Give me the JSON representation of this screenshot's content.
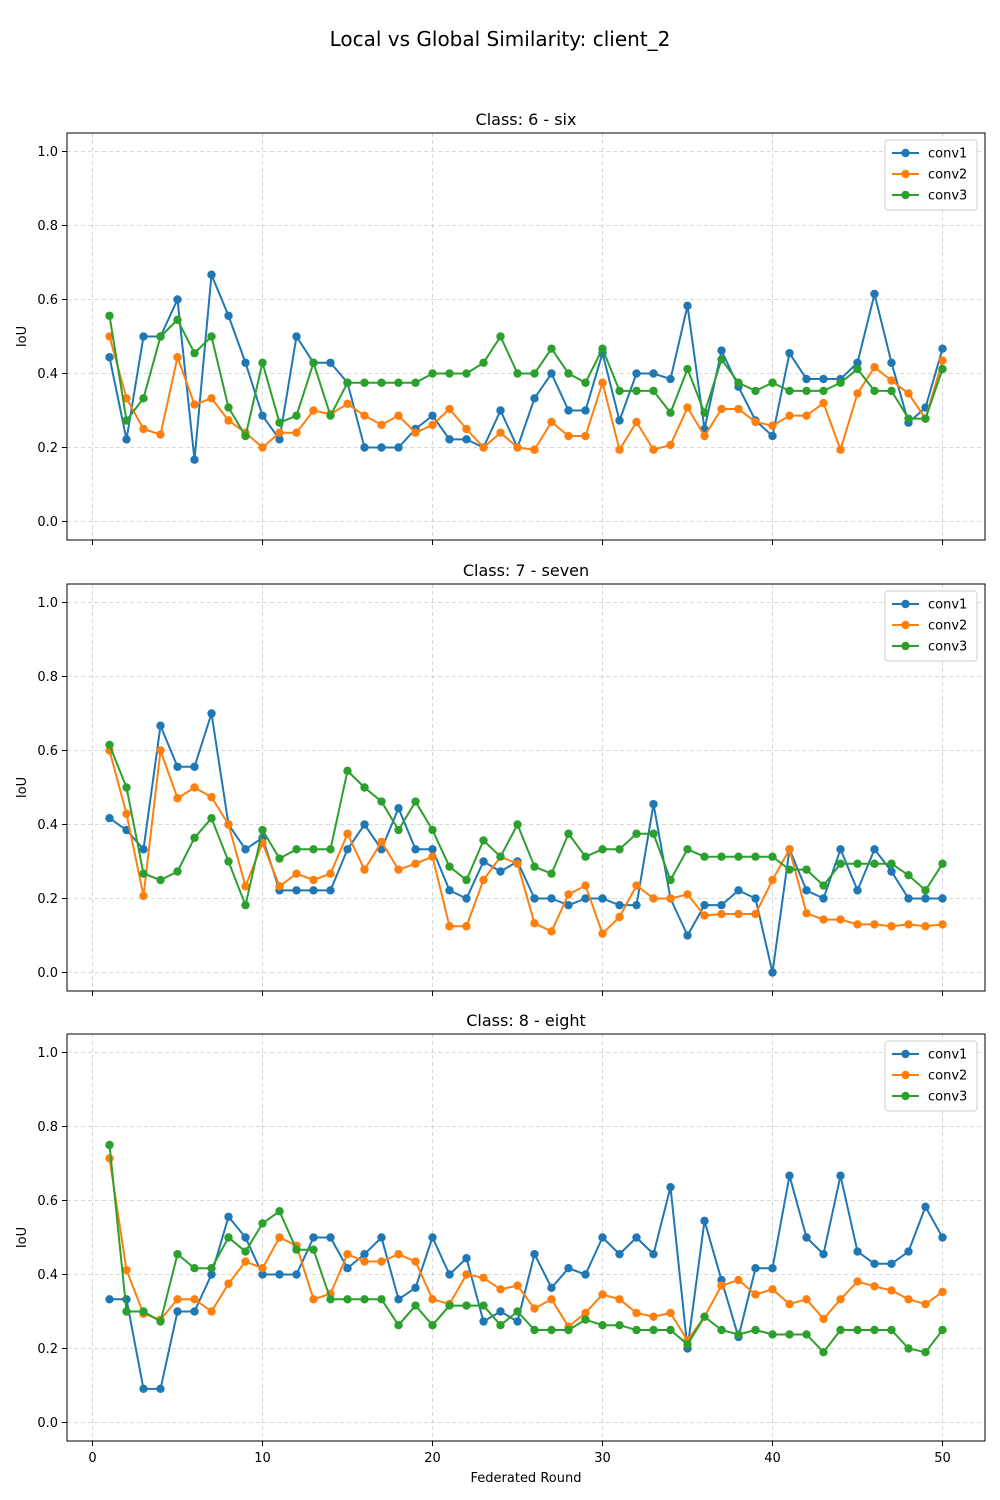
{
  "figure_title": "Local vs Global Similarity: client_2",
  "colors": {
    "conv1": "#1f77b4",
    "conv2": "#ff7f0e",
    "conv3": "#2ca02c",
    "grid": "#cccccc"
  },
  "chart_data": [
    {
      "type": "line",
      "title": "Class: 6 - six",
      "xlabel": "Federated Round",
      "ylabel": "IoU",
      "xlim": [
        -1.5,
        52.5
      ],
      "ylim": [
        -0.05,
        1.05
      ],
      "xticks": [
        0,
        10,
        20,
        30,
        40,
        50
      ],
      "yticks": [
        0.0,
        0.2,
        0.4,
        0.6,
        0.8,
        1.0
      ],
      "show_xtick_labels": false,
      "grid": true,
      "legend": "top-right",
      "x": [
        1,
        2,
        3,
        4,
        5,
        6,
        7,
        8,
        9,
        10,
        11,
        12,
        13,
        14,
        15,
        16,
        17,
        18,
        19,
        20,
        21,
        22,
        23,
        24,
        25,
        26,
        27,
        28,
        29,
        30,
        31,
        32,
        33,
        34,
        35,
        36,
        37,
        38,
        39,
        40,
        41,
        42,
        43,
        44,
        45,
        46,
        47,
        48,
        49,
        50
      ],
      "series": [
        {
          "name": "conv1",
          "values": [
            0.444,
            0.222,
            0.5,
            0.5,
            0.6,
            0.167,
            0.667,
            0.556,
            0.429,
            0.286,
            0.222,
            0.5,
            0.429,
            0.429,
            0.375,
            0.2,
            0.2,
            0.2,
            0.25,
            0.286,
            0.222,
            0.222,
            0.2,
            0.3,
            0.2,
            0.333,
            0.4,
            0.3,
            0.3,
            0.455,
            0.273,
            0.4,
            0.4,
            0.385,
            0.583,
            0.25,
            0.462,
            0.364,
            0.273,
            0.231,
            0.455,
            0.385,
            0.385,
            0.385,
            0.429,
            0.615,
            0.429,
            0.267,
            0.308,
            0.467
          ]
        },
        {
          "name": "conv2",
          "values": [
            0.5,
            0.333,
            0.25,
            0.235,
            0.444,
            0.316,
            0.333,
            0.273,
            0.24,
            0.2,
            0.24,
            0.24,
            0.3,
            0.29,
            0.318,
            0.286,
            0.261,
            0.286,
            0.24,
            0.261,
            0.304,
            0.25,
            0.2,
            0.24,
            0.2,
            0.194,
            0.269,
            0.231,
            0.231,
            0.375,
            0.194,
            0.269,
            0.194,
            0.207,
            0.308,
            0.231,
            0.304,
            0.304,
            0.269,
            0.259,
            0.286,
            0.286,
            0.32,
            0.194,
            0.346,
            0.417,
            0.381,
            0.346,
            0.278,
            0.435
          ]
        },
        {
          "name": "conv3",
          "values": [
            0.556,
            0.273,
            0.333,
            0.5,
            0.545,
            0.455,
            0.5,
            0.308,
            0.231,
            0.429,
            0.267,
            0.286,
            0.429,
            0.286,
            0.375,
            0.375,
            0.375,
            0.375,
            0.375,
            0.4,
            0.4,
            0.4,
            0.429,
            0.5,
            0.4,
            0.4,
            0.467,
            0.4,
            0.375,
            0.467,
            0.353,
            0.353,
            0.353,
            0.294,
            0.412,
            0.294,
            0.438,
            0.375,
            0.353,
            0.375,
            0.353,
            0.353,
            0.353,
            0.375,
            0.412,
            0.353,
            0.353,
            0.278,
            0.278,
            0.412
          ]
        }
      ]
    },
    {
      "type": "line",
      "title": "Class: 7 - seven",
      "xlabel": "Federated Round",
      "ylabel": "IoU",
      "xlim": [
        -1.5,
        52.5
      ],
      "ylim": [
        -0.05,
        1.05
      ],
      "xticks": [
        0,
        10,
        20,
        30,
        40,
        50
      ],
      "yticks": [
        0.0,
        0.2,
        0.4,
        0.6,
        0.8,
        1.0
      ],
      "show_xtick_labels": false,
      "grid": true,
      "legend": "top-right",
      "x": [
        1,
        2,
        3,
        4,
        5,
        6,
        7,
        8,
        9,
        10,
        11,
        12,
        13,
        14,
        15,
        16,
        17,
        18,
        19,
        20,
        21,
        22,
        23,
        24,
        25,
        26,
        27,
        28,
        29,
        30,
        31,
        32,
        33,
        34,
        35,
        36,
        37,
        38,
        39,
        40,
        41,
        42,
        43,
        44,
        45,
        46,
        47,
        48,
        49,
        50
      ],
      "series": [
        {
          "name": "conv1",
          "values": [
            0.417,
            0.385,
            0.333,
            0.667,
            0.556,
            0.556,
            0.7,
            0.4,
            0.333,
            0.364,
            0.222,
            0.222,
            0.222,
            0.222,
            0.333,
            0.4,
            0.333,
            0.444,
            0.333,
            0.333,
            0.222,
            0.2,
            0.3,
            0.273,
            0.3,
            0.2,
            0.2,
            0.182,
            0.2,
            0.2,
            0.182,
            0.182,
            0.455,
            0.2,
            0.1,
            0.182,
            0.182,
            0.222,
            0.2,
            0.0,
            0.333,
            0.222,
            0.2,
            0.333,
            0.222,
            0.333,
            0.273,
            0.2,
            0.2,
            0.2
          ]
        },
        {
          "name": "conv2",
          "values": [
            0.6,
            0.429,
            0.207,
            0.6,
            0.471,
            0.5,
            0.474,
            0.4,
            0.233,
            0.35,
            0.233,
            0.267,
            0.25,
            0.267,
            0.375,
            0.278,
            0.353,
            0.278,
            0.294,
            0.313,
            0.125,
            0.125,
            0.25,
            0.313,
            0.294,
            0.133,
            0.111,
            0.211,
            0.235,
            0.105,
            0.15,
            0.235,
            0.2,
            0.2,
            0.211,
            0.154,
            0.158,
            0.158,
            0.158,
            0.25,
            0.333,
            0.16,
            0.143,
            0.143,
            0.13,
            0.13,
            0.125,
            0.13,
            0.125,
            0.13
          ]
        },
        {
          "name": "conv3",
          "values": [
            0.615,
            0.5,
            0.267,
            0.25,
            0.273,
            0.364,
            0.417,
            0.3,
            0.182,
            0.385,
            0.308,
            0.333,
            0.333,
            0.333,
            0.545,
            0.5,
            0.462,
            0.385,
            0.462,
            0.385,
            0.286,
            0.25,
            0.357,
            0.313,
            0.4,
            0.286,
            0.267,
            0.375,
            0.313,
            0.333,
            0.333,
            0.375,
            0.375,
            0.25,
            0.333,
            0.313,
            0.313,
            0.313,
            0.313,
            0.313,
            0.278,
            0.278,
            0.235,
            0.294,
            0.294,
            0.294,
            0.294,
            0.263,
            0.222,
            0.294
          ]
        }
      ]
    },
    {
      "type": "line",
      "title": "Class: 8 - eight",
      "xlabel": "Federated Round",
      "ylabel": "IoU",
      "xlim": [
        -1.5,
        52.5
      ],
      "ylim": [
        -0.05,
        1.05
      ],
      "xticks": [
        0,
        10,
        20,
        30,
        40,
        50
      ],
      "yticks": [
        0.0,
        0.2,
        0.4,
        0.6,
        0.8,
        1.0
      ],
      "show_xtick_labels": true,
      "grid": true,
      "legend": "top-right",
      "x": [
        1,
        2,
        3,
        4,
        5,
        6,
        7,
        8,
        9,
        10,
        11,
        12,
        13,
        14,
        15,
        16,
        17,
        18,
        19,
        20,
        21,
        22,
        23,
        24,
        25,
        26,
        27,
        28,
        29,
        30,
        31,
        32,
        33,
        34,
        35,
        36,
        37,
        38,
        39,
        40,
        41,
        42,
        43,
        44,
        45,
        46,
        47,
        48,
        49,
        50
      ],
      "series": [
        {
          "name": "conv1",
          "values": [
            0.333,
            0.333,
            0.091,
            0.091,
            0.3,
            0.3,
            0.4,
            0.556,
            0.5,
            0.4,
            0.4,
            0.4,
            0.5,
            0.5,
            0.417,
            0.455,
            0.5,
            0.333,
            0.364,
            0.5,
            0.4,
            0.444,
            0.273,
            0.3,
            0.273,
            0.455,
            0.364,
            0.417,
            0.4,
            0.5,
            0.455,
            0.5,
            0.455,
            0.636,
            0.2,
            0.545,
            0.385,
            0.231,
            0.417,
            0.417,
            0.667,
            0.5,
            0.455,
            0.667,
            0.462,
            0.429,
            0.429,
            0.462,
            0.583,
            0.5
          ]
        },
        {
          "name": "conv2",
          "values": [
            0.714,
            0.412,
            0.294,
            0.278,
            0.333,
            0.333,
            0.3,
            0.375,
            0.435,
            0.417,
            0.5,
            0.478,
            0.333,
            0.348,
            0.455,
            0.435,
            0.435,
            0.455,
            0.435,
            0.333,
            0.32,
            0.4,
            0.391,
            0.36,
            0.37,
            0.308,
            0.333,
            0.259,
            0.296,
            0.346,
            0.333,
            0.296,
            0.286,
            0.296,
            0.222,
            0.286,
            0.37,
            0.385,
            0.346,
            0.36,
            0.32,
            0.333,
            0.28,
            0.333,
            0.381,
            0.368,
            0.357,
            0.333,
            0.32,
            0.353
          ]
        },
        {
          "name": "conv3",
          "values": [
            0.75,
            0.3,
            0.3,
            0.273,
            0.455,
            0.417,
            0.417,
            0.5,
            0.462,
            0.538,
            0.571,
            0.467,
            0.467,
            0.333,
            0.333,
            0.333,
            0.333,
            0.263,
            0.316,
            0.263,
            0.316,
            0.316,
            0.316,
            0.263,
            0.3,
            0.25,
            0.25,
            0.25,
            0.278,
            0.263,
            0.263,
            0.25,
            0.25,
            0.25,
            0.211,
            0.286,
            0.25,
            0.238,
            0.25,
            0.238,
            0.238,
            0.238,
            0.19,
            0.25,
            0.25,
            0.25,
            0.25,
            0.2,
            0.19,
            0.25
          ]
        }
      ]
    }
  ]
}
